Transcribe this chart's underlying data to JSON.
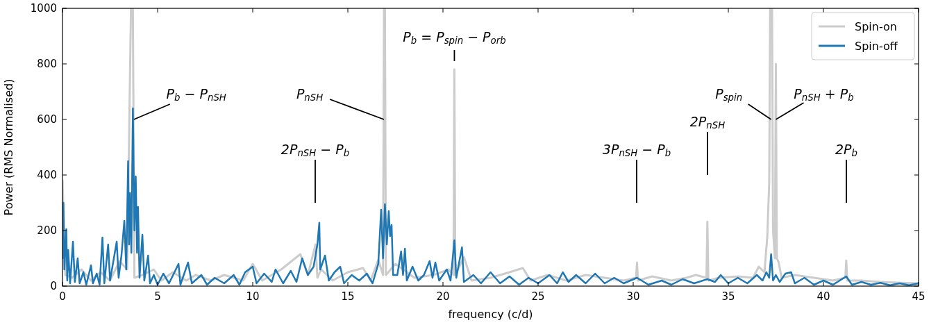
{
  "chart_data": {
    "type": "line",
    "xlabel": "frequency (c/d)",
    "ylabel": "Power (RMS Normalised)",
    "xlim": [
      0,
      45
    ],
    "ylim": [
      0,
      1000
    ],
    "xticks": [
      0,
      5,
      10,
      15,
      20,
      25,
      30,
      35,
      40,
      45
    ],
    "yticks": [
      0,
      200,
      400,
      600,
      800,
      1000
    ],
    "grid": false,
    "legend": "top right",
    "marker": "none",
    "line_style": "solid",
    "annotations": [
      {
        "text": "P$_{b}$ − P$_{nSH}$",
        "x": 3.75,
        "y": 600
      },
      {
        "text": "P$_{nSH}$",
        "x": 16.9,
        "y": 600
      },
      "2P$_{nSH}$ − P$_{b}$",
      {
        "text": "P$_{b}$ = P$_{spin}$ − P$_{orb}$",
        "x": 20.6,
        "y": 780
      },
      "3P$_{nSH}$ − P$_{b}$",
      "2P$_{nSH}$",
      {
        "text": "P$_{spin}$",
        "x": 37.25,
        "y": 600
      },
      {
        "text": "P$_{nSH}$ + P$_{b}$",
        "x": 37.5,
        "y": 600
      },
      "2P$_{b}$"
    ],
    "series": [
      {
        "name": "Spin-on",
        "color": "#cccccc",
        "x": [
          0,
          0.15,
          0.5,
          1.0,
          1.5,
          2.0,
          2.5,
          3.0,
          3.4,
          3.6,
          3.7,
          3.78,
          4.2,
          4.8,
          5.2,
          5.8,
          6.5,
          7.0,
          7.8,
          8.5,
          9.5,
          10.0,
          10.5,
          11.5,
          12.5,
          12.9,
          13.3,
          13.4,
          13.6,
          14.2,
          15.0,
          15.8,
          16.2,
          16.6,
          16.85,
          16.9,
          16.95,
          17.0,
          17.5,
          18.5,
          19.5,
          20.3,
          20.55,
          20.6,
          20.65,
          21.1,
          21.5,
          22.5,
          23.5,
          24.2,
          24.6,
          25.5,
          26.5,
          27.5,
          28.5,
          29.5,
          30.15,
          30.2,
          30.25,
          31.0,
          32.0,
          32.8,
          33.3,
          33.85,
          33.9,
          33.95,
          34.5,
          35.5,
          36.3,
          36.6,
          36.9,
          37.05,
          37.15,
          37.2,
          37.3,
          37.35,
          37.45,
          37.5,
          37.55,
          37.65,
          37.8,
          38.5,
          39.5,
          40.5,
          41.15,
          41.2,
          41.25,
          42.0,
          43.0,
          44.0,
          45.0
        ],
        "values": [
          380,
          40,
          30,
          60,
          20,
          50,
          20,
          90,
          60,
          1000,
          1000,
          30,
          40,
          60,
          20,
          50,
          20,
          40,
          20,
          40,
          20,
          80,
          20,
          60,
          115,
          40,
          150,
          30,
          60,
          20,
          50,
          65,
          20,
          95,
          40,
          1000,
          1000,
          40,
          80,
          30,
          40,
          60,
          40,
          780,
          40,
          105,
          20,
          30,
          50,
          65,
          20,
          40,
          20,
          40,
          30,
          20,
          30,
          85,
          20,
          35,
          20,
          30,
          40,
          30,
          232,
          20,
          30,
          35,
          30,
          70,
          50,
          180,
          375,
          1000,
          1000,
          200,
          100,
          800,
          100,
          85,
          30,
          40,
          30,
          20,
          30,
          92,
          20,
          20,
          15,
          12,
          10
        ]
      },
      {
        "name": "Spin-off",
        "color": "#1f77b4",
        "x": [
          0,
          0.05,
          0.1,
          0.2,
          0.25,
          0.3,
          0.4,
          0.55,
          0.65,
          0.8,
          0.9,
          1.1,
          1.25,
          1.5,
          1.6,
          1.8,
          1.95,
          2.1,
          2.2,
          2.4,
          2.5,
          2.7,
          2.85,
          2.95,
          3.1,
          3.25,
          3.35,
          3.45,
          3.5,
          3.55,
          3.62,
          3.7,
          3.78,
          3.85,
          3.92,
          3.97,
          4.05,
          4.2,
          4.3,
          4.5,
          4.6,
          4.8,
          5.0,
          5.3,
          5.6,
          6.1,
          6.2,
          6.6,
          6.8,
          7.3,
          7.6,
          8.0,
          8.5,
          9.0,
          9.3,
          9.6,
          10.0,
          10.2,
          10.6,
          11.0,
          11.2,
          11.6,
          12.0,
          12.3,
          12.6,
          12.9,
          13.2,
          13.4,
          13.5,
          13.55,
          13.8,
          14.0,
          14.3,
          14.6,
          14.8,
          15.2,
          15.6,
          16.0,
          16.3,
          16.6,
          16.75,
          16.85,
          16.95,
          17.05,
          17.15,
          17.22,
          17.3,
          17.38,
          17.6,
          17.8,
          17.9,
          18.0,
          18.1,
          18.4,
          18.7,
          19.0,
          19.3,
          19.45,
          19.6,
          19.8,
          20.2,
          20.4,
          20.6,
          20.7,
          21.0,
          21.1,
          21.6,
          22.0,
          22.5,
          23.0,
          23.5,
          24.0,
          24.5,
          25.0,
          25.6,
          26.0,
          26.3,
          26.6,
          27.0,
          27.5,
          28.0,
          28.5,
          29.0,
          29.5,
          30.2,
          30.8,
          31.5,
          32.0,
          32.6,
          33.2,
          33.9,
          34.3,
          34.6,
          35.0,
          35.5,
          36.0,
          36.5,
          36.8,
          37.0,
          37.15,
          37.25,
          37.35,
          37.5,
          37.7,
          38.0,
          38.3,
          38.5,
          39.0,
          39.5,
          40.0,
          40.5,
          41.2,
          41.5,
          42.0,
          42.5,
          43.0,
          43.5,
          44.0,
          44.5,
          45.0
        ],
        "values": [
          100,
          300,
          60,
          205,
          20,
          130,
          10,
          160,
          15,
          100,
          10,
          50,
          5,
          75,
          10,
          45,
          5,
          175,
          10,
          150,
          20,
          100,
          160,
          30,
          110,
          235,
          60,
          450,
          150,
          335,
          120,
          640,
          200,
          395,
          120,
          285,
          30,
          185,
          20,
          110,
          10,
          40,
          5,
          45,
          10,
          80,
          5,
          85,
          10,
          40,
          5,
          30,
          10,
          40,
          5,
          50,
          70,
          10,
          45,
          15,
          60,
          10,
          55,
          15,
          100,
          40,
          70,
          150,
          228,
          60,
          110,
          20,
          50,
          70,
          10,
          40,
          20,
          45,
          10,
          80,
          275,
          100,
          295,
          150,
          270,
          180,
          220,
          40,
          40,
          125,
          40,
          135,
          20,
          70,
          20,
          40,
          90,
          30,
          85,
          20,
          60,
          20,
          165,
          30,
          140,
          15,
          40,
          10,
          50,
          10,
          35,
          5,
          30,
          10,
          40,
          10,
          50,
          15,
          40,
          10,
          45,
          10,
          30,
          10,
          30,
          5,
          20,
          5,
          25,
          10,
          25,
          15,
          40,
          10,
          30,
          10,
          40,
          20,
          50,
          30,
          115,
          20,
          40,
          15,
          45,
          50,
          10,
          30,
          5,
          20,
          5,
          35,
          5,
          15,
          5,
          12,
          3,
          10,
          3,
          10
        ]
      }
    ]
  }
}
